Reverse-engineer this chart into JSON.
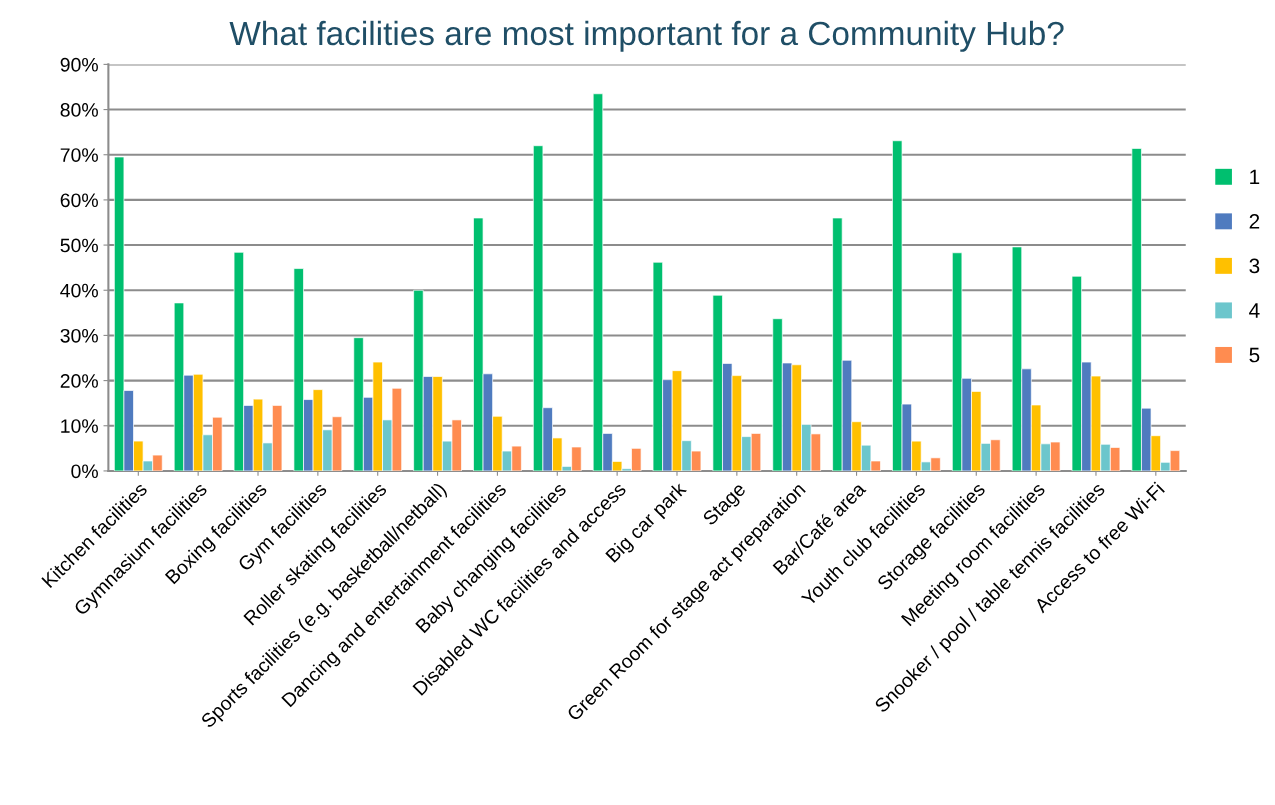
{
  "chart_data": {
    "type": "bar",
    "title": "What facilities are most important for a Community Hub?",
    "categories": [
      "Kitchen facilities",
      "Gymnasium facilities",
      "Boxing facilities",
      "Gym facilities",
      "Roller skating facilities",
      "Sports facilities (e.g. basketball/netball)",
      "Dancing and entertainment facilities",
      "Baby changing facilities",
      "Disabled WC facilities and access",
      "Big car park",
      "Stage",
      "Green Room for stage act preparation",
      "Bar/Café area",
      "Youth club facilities",
      "Storage facilities",
      "Meeting room facilities",
      "Snooker / pool / table tennis facilities",
      "Access to free Wi-Fi"
    ],
    "series": [
      {
        "name": "1",
        "color": "#00bf6f",
        "values": [
          69.5,
          37.2,
          48.4,
          44.8,
          29.5,
          40.0,
          56.0,
          72.0,
          83.5,
          46.2,
          38.9,
          33.7,
          56.0,
          73.1,
          48.3,
          49.6,
          43.1,
          71.4
        ]
      },
      {
        "name": "2",
        "color": "#4f7bbf",
        "values": [
          17.8,
          21.2,
          14.5,
          15.8,
          16.3,
          20.9,
          21.5,
          14.0,
          8.3,
          20.2,
          23.8,
          23.9,
          24.5,
          14.8,
          20.5,
          22.6,
          24.1,
          13.9
        ]
      },
      {
        "name": "3",
        "color": "#ffc000",
        "values": [
          6.6,
          21.4,
          15.9,
          18.0,
          24.1,
          20.9,
          12.1,
          7.3,
          2.1,
          22.2,
          21.1,
          23.5,
          10.9,
          6.6,
          17.6,
          14.6,
          21.0,
          7.8
        ]
      },
      {
        "name": "4",
        "color": "#6cc6cc",
        "values": [
          2.2,
          8.0,
          6.2,
          9.1,
          11.3,
          6.6,
          4.4,
          1.0,
          0.5,
          6.7,
          7.6,
          10.3,
          5.7,
          2.0,
          6.1,
          6.0,
          5.9,
          1.9
        ]
      },
      {
        "name": "5",
        "color": "#ff8c50",
        "values": [
          3.5,
          11.9,
          14.5,
          12.0,
          18.3,
          11.3,
          5.5,
          5.3,
          5.0,
          4.4,
          8.3,
          8.2,
          2.2,
          2.9,
          6.9,
          6.4,
          5.2,
          4.5
        ]
      }
    ],
    "ylim": [
      0,
      90
    ],
    "yticks": [
      {
        "value": 0,
        "label": "0%"
      },
      {
        "value": 10,
        "label": "10%"
      },
      {
        "value": 20,
        "label": "20%"
      },
      {
        "value": 30,
        "label": "30%"
      },
      {
        "value": 40,
        "label": "40%"
      },
      {
        "value": 50,
        "label": "50%"
      },
      {
        "value": 60,
        "label": "60%"
      },
      {
        "value": 70,
        "label": "70%"
      },
      {
        "value": 80,
        "label": "80%"
      },
      {
        "value": 90,
        "label": "90%"
      }
    ],
    "grid": "y",
    "legend": "right"
  }
}
